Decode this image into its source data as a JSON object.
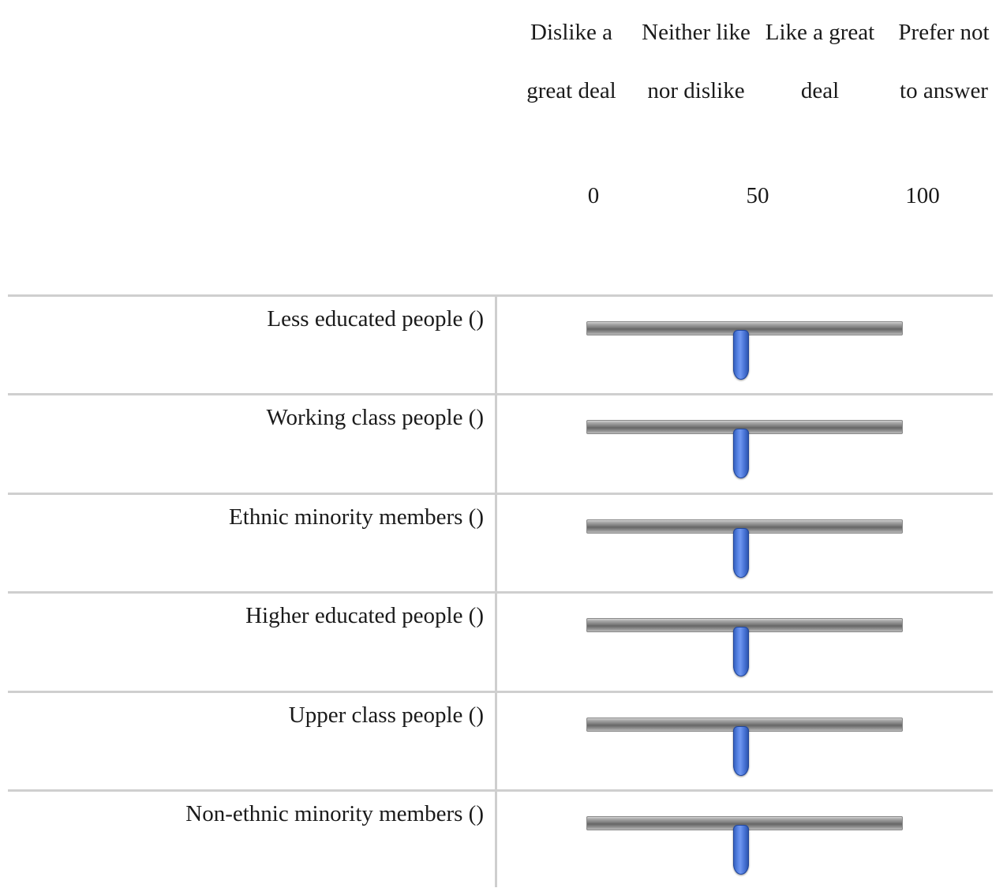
{
  "scale": {
    "headers": [
      "Dislike a great deal",
      "Neither like nor dislike",
      "Like a great deal",
      "Prefer not to answer"
    ],
    "ticks": [
      "0",
      "50",
      "100"
    ],
    "min": 0,
    "max": 100
  },
  "items": [
    {
      "label": "Less educated people ()",
      "value": 49
    },
    {
      "label": "Working class people ()",
      "value": 49
    },
    {
      "label": "Ethnic minority members ()",
      "value": 49
    },
    {
      "label": "Higher educated people ()",
      "value": 49
    },
    {
      "label": "Upper class people ()",
      "value": 49
    },
    {
      "label": "Non-ethnic minority members ()",
      "value": 49
    }
  ],
  "colors": {
    "handle": "#4a75d8",
    "track": "#7c7c7c",
    "divider": "#cfcfcf"
  }
}
